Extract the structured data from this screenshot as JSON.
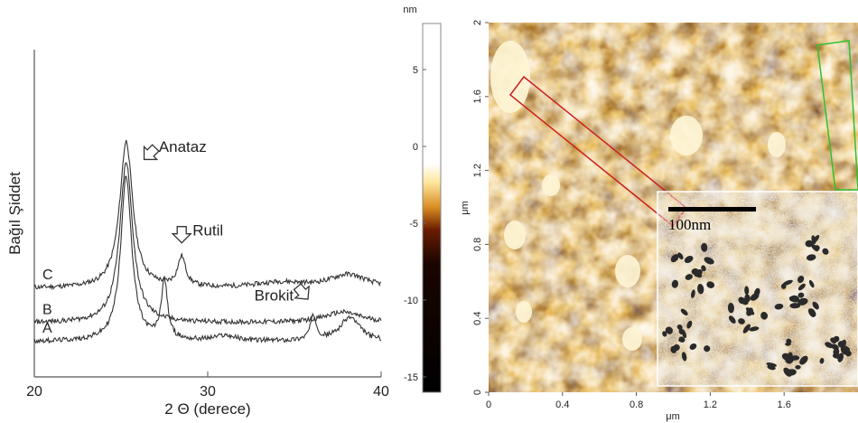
{
  "chart_data": [
    {
      "type": "line",
      "title": "",
      "xlabel": "2 Θ (derece)",
      "ylabel": "Bağıl Şiddet",
      "xlim": [
        20,
        40
      ],
      "xticks": [
        20,
        30,
        40
      ],
      "grid": false,
      "series": [
        {
          "name": "C",
          "baseline": 0.2,
          "peaks": [
            {
              "x": 25.3,
              "h": 0.55,
              "w": 0.45
            },
            {
              "x": 28.5,
              "h": 0.11,
              "w": 0.28
            },
            {
              "x": 38.1,
              "h": 0.05,
              "w": 1.3
            },
            {
              "x": 34.2,
              "h": 0.02,
              "w": 1.6
            }
          ]
        },
        {
          "name": "B",
          "baseline": 0.07,
          "peaks": [
            {
              "x": 25.3,
              "h": 0.6,
              "w": 0.45
            },
            {
              "x": 37.8,
              "h": 0.04,
              "w": 1.3
            }
          ]
        },
        {
          "name": "A",
          "baseline": 0.0,
          "peaks": [
            {
              "x": 25.3,
              "h": 0.62,
              "w": 0.38
            },
            {
              "x": 27.5,
              "h": 0.22,
              "w": 0.22
            },
            {
              "x": 36.1,
              "h": 0.09,
              "w": 0.22
            },
            {
              "x": 38.2,
              "h": 0.09,
              "w": 0.7
            },
            {
              "x": 31.0,
              "h": 0.02,
              "w": 0.8
            }
          ]
        }
      ],
      "annotations": [
        {
          "text": "Anataz",
          "x": 25.3,
          "series": "C"
        },
        {
          "text": "Rutil",
          "x": 28.5,
          "series": "C"
        },
        {
          "text": "Brokit",
          "x": 36.1,
          "series": "A"
        }
      ]
    },
    {
      "type": "heatmap",
      "title": "",
      "colorbar": {
        "unit": "nm",
        "range": [
          -16,
          8
        ],
        "ticks": [
          5,
          0,
          -5,
          -10,
          -15
        ]
      },
      "xlabel": "μm",
      "ylabel": "μm",
      "xlim": [
        0,
        2
      ],
      "ylim": [
        0,
        2
      ],
      "xticks": [
        0,
        0.4,
        0.8,
        1.2,
        1.6
      ],
      "yticks": [
        0,
        0.4,
        0.8,
        1.2,
        1.6,
        2
      ],
      "inset": {
        "scale_label": "100nm"
      }
    }
  ]
}
